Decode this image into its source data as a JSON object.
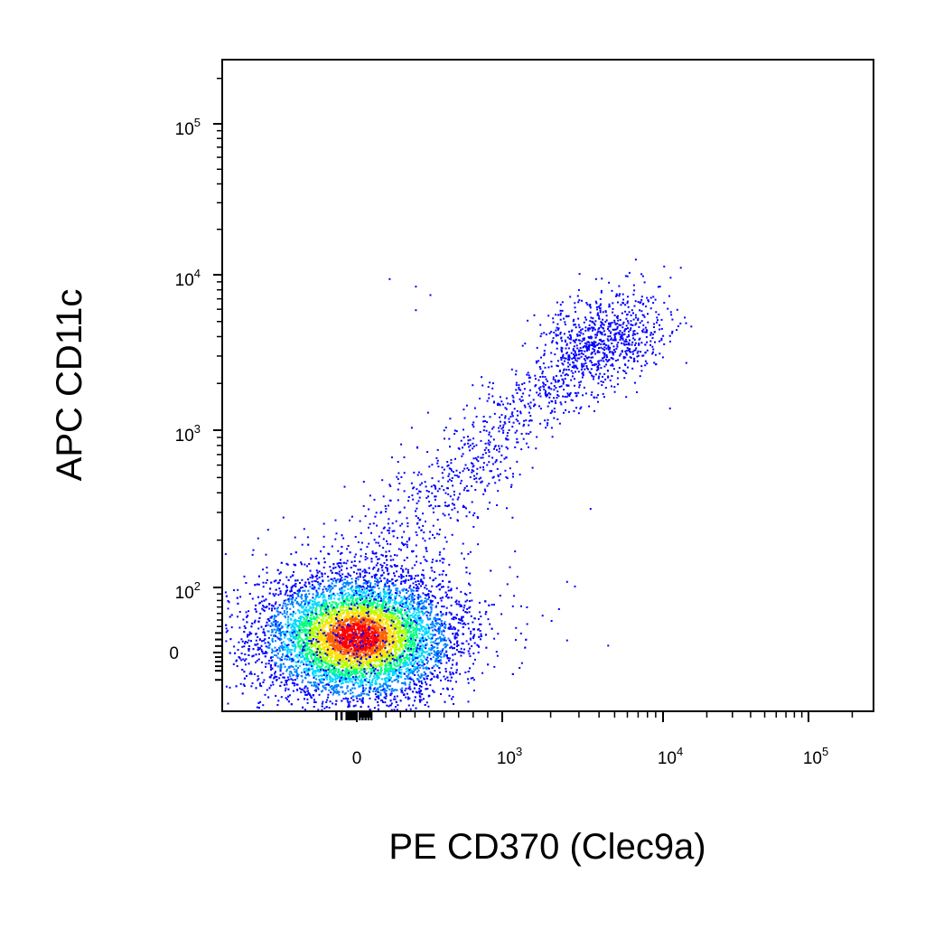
{
  "chart_data": {
    "type": "scatter",
    "subtype": "flow-cytometry-density-dot-plot",
    "xlabel": "PE CD370 (Clec9a)",
    "ylabel": "APC  CD11c",
    "x_scale": "biexponential",
    "y_scale": "biexponential",
    "xlim": [
      -250,
      200000
    ],
    "ylim": [
      -120,
      250000
    ],
    "grid": false,
    "legend": "none",
    "x_ticks": [
      {
        "value": 0,
        "base": "0",
        "exp": ""
      },
      {
        "value": 1000,
        "base": "10",
        "exp": "3"
      },
      {
        "value": 10000,
        "base": "10",
        "exp": "4"
      },
      {
        "value": 100000,
        "base": "10",
        "exp": "5"
      }
    ],
    "y_ticks": [
      {
        "value": 0,
        "base": "0",
        "exp": ""
      },
      {
        "value": 100,
        "base": "10",
        "exp": "2"
      },
      {
        "value": 1000,
        "base": "10",
        "exp": "3"
      },
      {
        "value": 10000,
        "base": "10",
        "exp": "4"
      },
      {
        "value": 100000,
        "base": "10",
        "exp": "5"
      }
    ],
    "density_colors": [
      "#0000ff",
      "#0080ff",
      "#00d8ff",
      "#00ff80",
      "#b0ff00",
      "#ffe000",
      "#ff6000",
      "#ff0000"
    ],
    "populations": [
      {
        "description": "main negative cluster",
        "x_center": 0,
        "y_center": 25
      },
      {
        "description": "CD370+ CD11c+ diagonal population",
        "x_from": 300,
        "y_from": 300,
        "x_to": 8000,
        "y_to": 6000
      }
    ],
    "outliers": [
      {
        "x": 220,
        "y": 9500
      },
      {
        "x": 400,
        "y": 8500
      },
      {
        "x": 400,
        "y": 6000
      },
      {
        "x": 500,
        "y": 7500
      },
      {
        "x": 3500,
        "y": 320
      },
      {
        "x": 2500,
        "y": 110
      },
      {
        "x": 11000,
        "y": 1400
      },
      {
        "x": 4500,
        "y": 12
      },
      {
        "x": 2500,
        "y": 20
      },
      {
        "x": 2000,
        "y": 50
      }
    ]
  }
}
